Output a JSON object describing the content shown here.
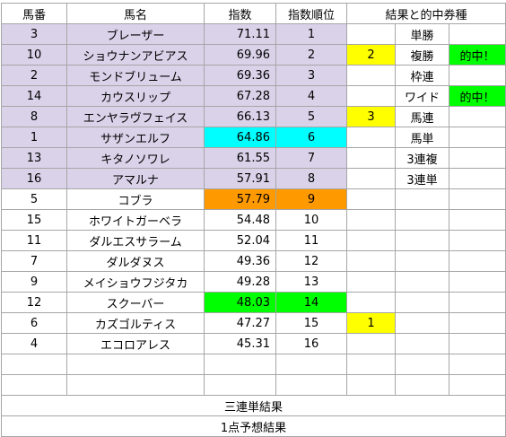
{
  "headers": {
    "umaban": "馬番",
    "bamei": "馬名",
    "shisu": "指数",
    "juni": "指数順位",
    "result": "結果と的中券種"
  },
  "rows": [
    {
      "umaban": "3",
      "name": "ブレーザー",
      "index": "71.11",
      "rank": "1",
      "result_num": "",
      "bet": "単勝",
      "hit": ""
    },
    {
      "umaban": "10",
      "name": "ショウナンアビアス",
      "index": "69.96",
      "rank": "2",
      "result_num": "2",
      "bet": "複勝",
      "hit": "的中！"
    },
    {
      "umaban": "2",
      "name": "モンドブリューム",
      "index": "69.36",
      "rank": "3",
      "result_num": "",
      "bet": "枠連",
      "hit": ""
    },
    {
      "umaban": "14",
      "name": "カウスリップ",
      "index": "67.28",
      "rank": "4",
      "result_num": "",
      "bet": "ワイド",
      "hit": "的中！"
    },
    {
      "umaban": "8",
      "name": "エンヤラヴフェイス",
      "index": "66.13",
      "rank": "5",
      "result_num": "3",
      "bet": "馬連",
      "hit": ""
    },
    {
      "umaban": "1",
      "name": "サザンエルフ",
      "index": "64.86",
      "rank": "6",
      "result_num": "",
      "bet": "馬単",
      "hit": ""
    },
    {
      "umaban": "13",
      "name": "キタノソワレ",
      "index": "61.55",
      "rank": "7",
      "result_num": "",
      "bet": "3連複",
      "hit": ""
    },
    {
      "umaban": "16",
      "name": "アマルナ",
      "index": "57.91",
      "rank": "8",
      "result_num": "",
      "bet": "3連単",
      "hit": ""
    },
    {
      "umaban": "5",
      "name": "コブラ",
      "index": "57.79",
      "rank": "9",
      "result_num": "",
      "bet": "",
      "hit": ""
    },
    {
      "umaban": "15",
      "name": "ホワイトガーベラ",
      "index": "54.48",
      "rank": "10",
      "result_num": "",
      "bet": "",
      "hit": ""
    },
    {
      "umaban": "11",
      "name": "ダルエスサラーム",
      "index": "52.04",
      "rank": "11",
      "result_num": "",
      "bet": "",
      "hit": ""
    },
    {
      "umaban": "7",
      "name": "ダルダヌス",
      "index": "49.36",
      "rank": "12",
      "result_num": "",
      "bet": "",
      "hit": ""
    },
    {
      "umaban": "9",
      "name": "メイショウフジタカ",
      "index": "49.28",
      "rank": "13",
      "result_num": "",
      "bet": "",
      "hit": ""
    },
    {
      "umaban": "12",
      "name": "スクーバー",
      "index": "48.03",
      "rank": "14",
      "result_num": "",
      "bet": "",
      "hit": ""
    },
    {
      "umaban": "6",
      "name": "カズゴルティス",
      "index": "47.27",
      "rank": "15",
      "result_num": "1",
      "bet": "",
      "hit": ""
    },
    {
      "umaban": "4",
      "name": "エコロアレス",
      "index": "45.31",
      "rank": "16",
      "result_num": "",
      "bet": "",
      "hit": ""
    }
  ],
  "footer": {
    "sanrentan": "三連単結果",
    "yosou": "1点予想結果"
  },
  "colors": {
    "top8_bg": "#d9d2e9",
    "cyan": "#00ffff",
    "orange": "#ff9900",
    "green": "#00ff00",
    "yellow": "#ffff00"
  }
}
